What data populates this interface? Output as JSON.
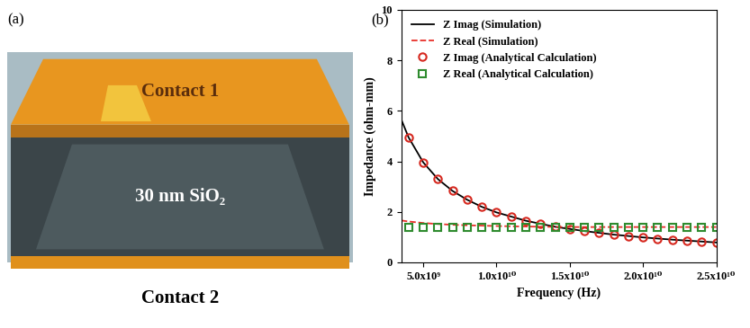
{
  "diagram": {
    "panel_label": "(a)",
    "layers": [
      {
        "label": "Contact 1"
      },
      {
        "label": "30 nm SiO₂"
      },
      {
        "label": "Contact 2"
      }
    ]
  },
  "chart_data": {
    "type": "line",
    "panel_label": "(b)",
    "x_label": "Frequency (Hz)",
    "y_label": "Impedance (ohm-mm)",
    "xlim": [
      3500000000,
      25000000000
    ],
    "xticks": [
      {
        "value": 5000000000,
        "label": "5.0x10⁹"
      },
      {
        "value": 10000000000,
        "label": "1.0x10¹⁰"
      },
      {
        "value": 15000000000,
        "label": "1.5x10¹⁰"
      },
      {
        "value": 20000000000,
        "label": "2.0x10¹⁰"
      },
      {
        "value": 25000000000,
        "label": "2.5x10¹⁰"
      }
    ],
    "ylim": [
      0,
      10
    ],
    "yticks": [
      0,
      2,
      4,
      6,
      8,
      10
    ],
    "legend": "upper left",
    "grid": false,
    "series": [
      {
        "name": "Z Imag (Simulation)",
        "type": "line",
        "color": "#000000",
        "line_style": "solid",
        "x": [
          3500000000,
          4000000000,
          5000000000,
          6000000000,
          7000000000,
          8000000000,
          9000000000,
          10000000000,
          12000000000,
          14000000000,
          16000000000,
          18000000000,
          20000000000,
          22000000000,
          25000000000
        ],
        "values": [
          5.66,
          4.95,
          3.96,
          3.3,
          2.83,
          2.48,
          2.2,
          1.98,
          1.65,
          1.41,
          1.24,
          1.1,
          0.99,
          0.9,
          0.79
        ]
      },
      {
        "name": "Z Real (Simulation)",
        "type": "line",
        "color": "#e8302a",
        "line_style": "dashed",
        "x": [
          3500000000,
          4000000000,
          5000000000,
          6000000000,
          7000000000,
          8000000000,
          10000000000,
          12000000000,
          15000000000,
          20000000000,
          25000000000
        ],
        "values": [
          1.66,
          1.62,
          1.56,
          1.52,
          1.49,
          1.47,
          1.44,
          1.42,
          1.4,
          1.4,
          1.4
        ]
      },
      {
        "name": "Z Imag (Analytical Calculation)",
        "type": "scatter",
        "color": "#d6281f",
        "marker": "circle",
        "x": [
          4000000000,
          5000000000,
          6000000000,
          7000000000,
          8000000000,
          9000000000,
          10000000000,
          11000000000,
          12000000000,
          13000000000,
          14000000000,
          15000000000,
          16000000000,
          17000000000,
          18000000000,
          19000000000,
          20000000000,
          21000000000,
          22000000000,
          23000000000,
          24000000000,
          25000000000
        ],
        "values": [
          4.95,
          3.96,
          3.3,
          2.83,
          2.48,
          2.2,
          1.98,
          1.8,
          1.65,
          1.52,
          1.41,
          1.32,
          1.24,
          1.16,
          1.1,
          1.04,
          0.99,
          0.94,
          0.9,
          0.86,
          0.83,
          0.79
        ]
      },
      {
        "name": "Z Real (Analytical Calculation)",
        "type": "scatter",
        "color": "#2e8b2e",
        "marker": "square",
        "x": [
          4000000000,
          5000000000,
          6000000000,
          7000000000,
          8000000000,
          9000000000,
          10000000000,
          11000000000,
          12000000000,
          13000000000,
          14000000000,
          15000000000,
          16000000000,
          17000000000,
          18000000000,
          19000000000,
          20000000000,
          21000000000,
          22000000000,
          23000000000,
          24000000000,
          25000000000
        ],
        "values": [
          1.4,
          1.4,
          1.4,
          1.4,
          1.4,
          1.4,
          1.4,
          1.4,
          1.4,
          1.4,
          1.4,
          1.4,
          1.4,
          1.4,
          1.4,
          1.4,
          1.4,
          1.4,
          1.4,
          1.4,
          1.4,
          1.4
        ]
      }
    ]
  }
}
